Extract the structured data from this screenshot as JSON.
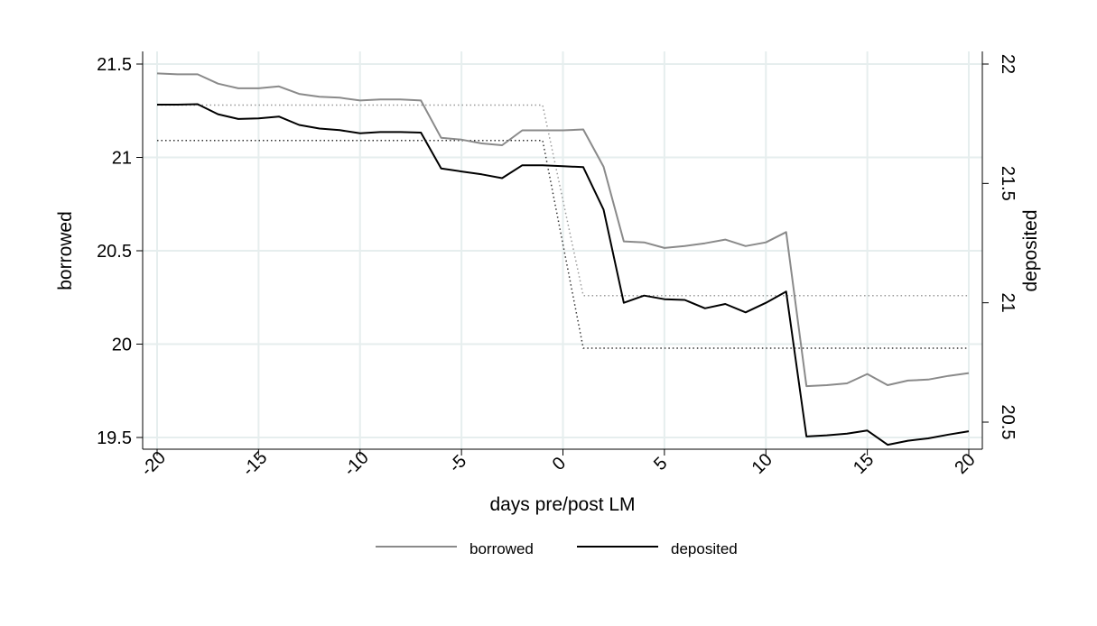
{
  "chart_data": {
    "type": "line",
    "title": "",
    "xlabel": "days pre/post LM",
    "ylabel": "borrowed",
    "y2label": "deposited",
    "xlim": [
      -20,
      20
    ],
    "ylim": [
      19.43,
      21.56
    ],
    "y2lim": [
      20.39,
      22.05
    ],
    "xticks": [
      "-20",
      "-15",
      "-10",
      "-5",
      "0",
      "5",
      "10",
      "15",
      "20"
    ],
    "yticks": [
      "19.5",
      "20",
      "20.5",
      "21",
      "21.5"
    ],
    "y2ticks": [
      "20.5",
      "21",
      "21.5",
      "22"
    ],
    "grid": true,
    "legend_position": "bottom",
    "colors": {
      "borrowed": "#8a8a8a",
      "deposited": "#000000",
      "grid": "#e6eeee",
      "dotted_light": "#9a9a9a",
      "dotted_dark": "#333333"
    },
    "x": [
      -20,
      -19,
      -18,
      -17,
      -16,
      -15,
      -14,
      -13,
      -12,
      -11,
      -10,
      -9,
      -8,
      -7,
      -6,
      -5,
      -4,
      -3,
      -2,
      -1,
      0,
      1,
      2,
      3,
      4,
      5,
      6,
      7,
      8,
      9,
      10,
      11,
      12,
      13,
      14,
      15,
      16,
      17,
      18,
      19,
      20
    ],
    "series": [
      {
        "name": "borrowed",
        "axis": "left",
        "values": [
          21.45,
          21.445,
          21.445,
          21.395,
          21.37,
          21.37,
          21.38,
          21.34,
          21.325,
          21.32,
          21.305,
          21.31,
          21.31,
          21.305,
          21.105,
          21.095,
          21.075,
          21.065,
          21.145,
          21.145,
          21.145,
          21.15,
          20.95,
          20.55,
          20.545,
          20.515,
          20.525,
          20.54,
          20.56,
          20.525,
          20.545,
          20.6,
          19.775,
          19.78,
          19.79,
          19.84,
          19.78,
          19.805,
          19.81,
          19.83,
          19.845
        ]
      },
      {
        "name": "deposited",
        "axis": "right",
        "values": [
          21.83,
          21.83,
          21.832,
          21.79,
          21.77,
          21.772,
          21.78,
          21.745,
          21.73,
          21.723,
          21.71,
          21.715,
          21.715,
          21.713,
          21.563,
          21.55,
          21.538,
          21.522,
          21.576,
          21.576,
          21.572,
          21.568,
          21.39,
          21.0,
          21.03,
          21.015,
          21.012,
          20.977,
          20.995,
          20.96,
          21.0,
          21.047,
          20.44,
          20.445,
          20.452,
          20.465,
          20.405,
          20.422,
          20.432,
          20.448,
          20.462
        ]
      },
      {
        "name": "",
        "axis": "left",
        "style": "dotted-light",
        "x": [
          -20,
          -1,
          1,
          20
        ],
        "values": [
          21.28,
          21.28,
          20.26,
          20.26
        ]
      },
      {
        "name": "",
        "axis": "right",
        "style": "dotted-dark",
        "x": [
          -20,
          -1,
          1,
          20
        ],
        "values": [
          21.68,
          21.68,
          20.81,
          20.81
        ]
      }
    ]
  }
}
